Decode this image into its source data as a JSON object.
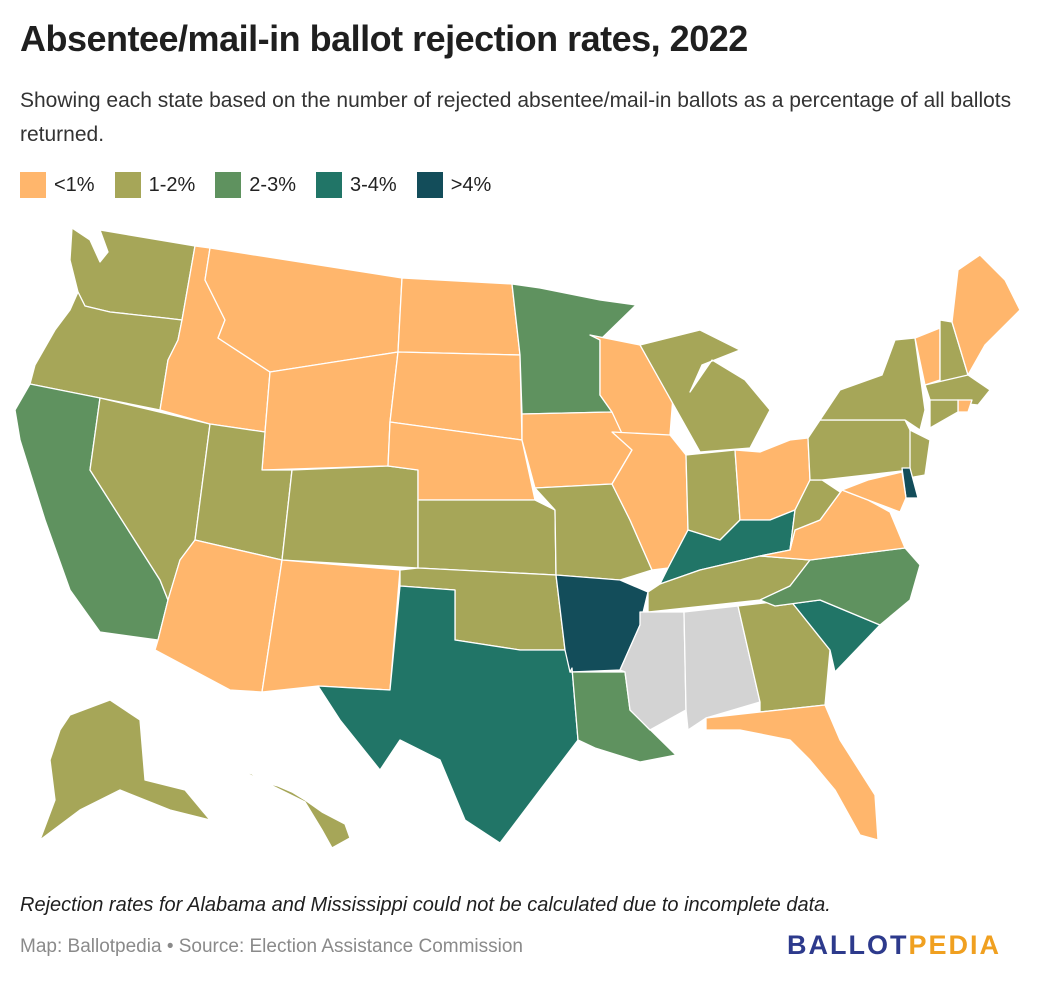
{
  "title": "Absentee/mail-in ballot rejection rates, 2022",
  "subtitle": "Showing each state based on the number of rejected absentee/mail-in ballots as a percentage of all ballots returned.",
  "legend": [
    {
      "label": "<1%",
      "color": "#ffb66c"
    },
    {
      "label": "1-2%",
      "color": "#a6a658"
    },
    {
      "label": "2-3%",
      "color": "#5f925f"
    },
    {
      "label": "3-4%",
      "color": "#217567"
    },
    {
      "label": ">4%",
      "color": "#134d5a"
    }
  ],
  "no_data_color": "#d3d3d3",
  "note": "Rejection rates for Alabama and Mississippi could not be calculated due to incomplete data.",
  "credit": "Map: Ballotpedia • Source: Election Assistance Commission",
  "logo": {
    "part1": "BALLOT",
    "part2": "PEDIA"
  },
  "states": [
    {
      "abbr": "WA",
      "category": "1-2%"
    },
    {
      "abbr": "OR",
      "category": "1-2%"
    },
    {
      "abbr": "CA",
      "category": "2-3%"
    },
    {
      "abbr": "NV",
      "category": "1-2%"
    },
    {
      "abbr": "ID",
      "category": "<1%"
    },
    {
      "abbr": "MT",
      "category": "<1%"
    },
    {
      "abbr": "WY",
      "category": "<1%"
    },
    {
      "abbr": "UT",
      "category": "1-2%"
    },
    {
      "abbr": "AZ",
      "category": "<1%"
    },
    {
      "abbr": "CO",
      "category": "1-2%"
    },
    {
      "abbr": "NM",
      "category": "<1%"
    },
    {
      "abbr": "ND",
      "category": "<1%"
    },
    {
      "abbr": "SD",
      "category": "<1%"
    },
    {
      "abbr": "NE",
      "category": "<1%"
    },
    {
      "abbr": "KS",
      "category": "1-2%"
    },
    {
      "abbr": "OK",
      "category": "1-2%"
    },
    {
      "abbr": "TX",
      "category": "3-4%"
    },
    {
      "abbr": "MN",
      "category": "2-3%"
    },
    {
      "abbr": "IA",
      "category": "<1%"
    },
    {
      "abbr": "MO",
      "category": "1-2%"
    },
    {
      "abbr": "AR",
      "category": ">4%"
    },
    {
      "abbr": "LA",
      "category": "2-3%"
    },
    {
      "abbr": "WI",
      "category": "<1%"
    },
    {
      "abbr": "IL",
      "category": "<1%"
    },
    {
      "abbr": "MI",
      "category": "1-2%"
    },
    {
      "abbr": "IN",
      "category": "1-2%"
    },
    {
      "abbr": "OH",
      "category": "<1%"
    },
    {
      "abbr": "KY",
      "category": "3-4%"
    },
    {
      "abbr": "TN",
      "category": "1-2%"
    },
    {
      "abbr": "MS",
      "category": "no data"
    },
    {
      "abbr": "AL",
      "category": "no data"
    },
    {
      "abbr": "GA",
      "category": "1-2%"
    },
    {
      "abbr": "FL",
      "category": "<1%"
    },
    {
      "abbr": "SC",
      "category": "3-4%"
    },
    {
      "abbr": "NC",
      "category": "2-3%"
    },
    {
      "abbr": "VA",
      "category": "<1%"
    },
    {
      "abbr": "WV",
      "category": "1-2%"
    },
    {
      "abbr": "PA",
      "category": "1-2%"
    },
    {
      "abbr": "NY",
      "category": "1-2%"
    },
    {
      "abbr": "VT",
      "category": "<1%"
    },
    {
      "abbr": "NH",
      "category": "1-2%"
    },
    {
      "abbr": "ME",
      "category": "<1%"
    },
    {
      "abbr": "MA",
      "category": "1-2%"
    },
    {
      "abbr": "RI",
      "category": "<1%"
    },
    {
      "abbr": "CT",
      "category": "1-2%"
    },
    {
      "abbr": "NJ",
      "category": "1-2%"
    },
    {
      "abbr": "DE",
      "category": ">4%"
    },
    {
      "abbr": "MD",
      "category": "<1%"
    },
    {
      "abbr": "AK",
      "category": "1-2%"
    },
    {
      "abbr": "HI",
      "category": "1-2%"
    }
  ]
}
